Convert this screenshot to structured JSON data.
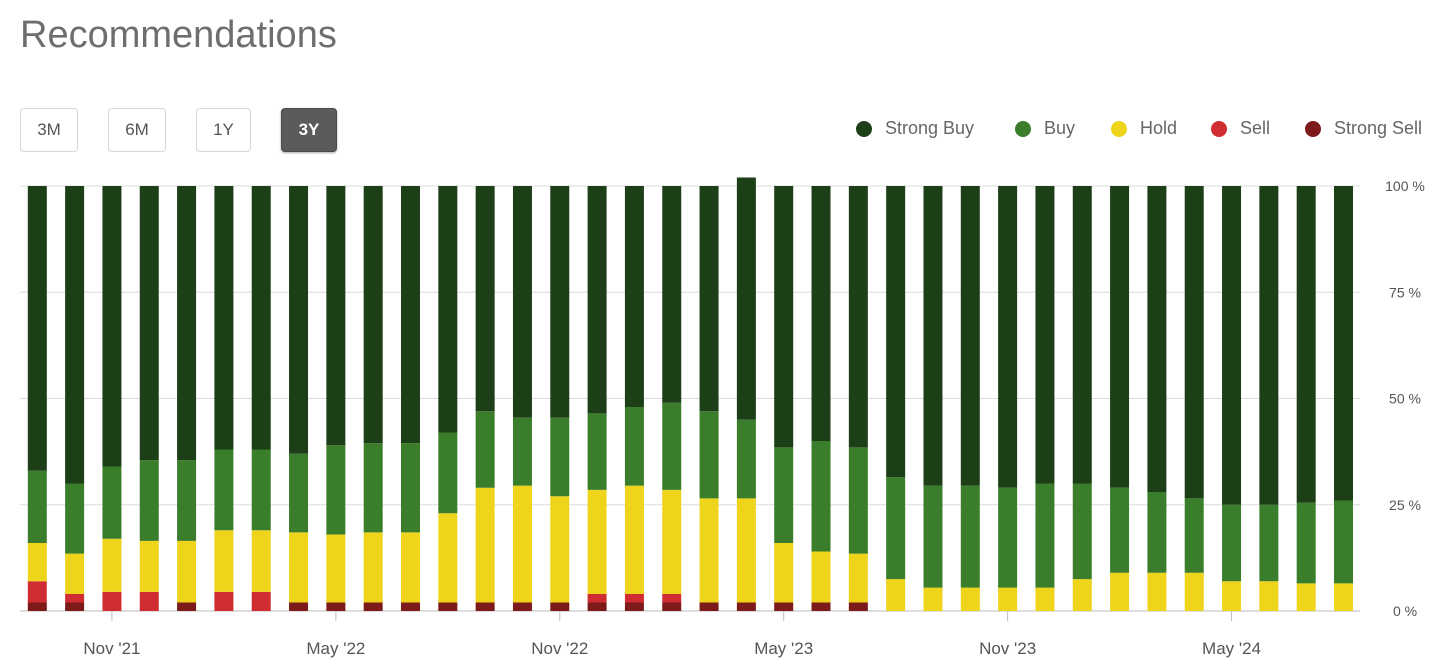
{
  "page": {
    "title": "Recommendations"
  },
  "range_buttons": [
    {
      "label": "3M",
      "active": false
    },
    {
      "label": "6M",
      "active": false
    },
    {
      "label": "1Y",
      "active": false
    },
    {
      "label": "3Y",
      "active": true
    }
  ],
  "legend": [
    {
      "label": "Strong Buy",
      "color": "#1d3f17"
    },
    {
      "label": "Buy",
      "color": "#3a7e2b"
    },
    {
      "label": "Hold",
      "color": "#eed41b"
    },
    {
      "label": "Sell",
      "color": "#cf2d31"
    },
    {
      "label": "Strong Sell",
      "color": "#7d1a1a"
    }
  ],
  "chart_data": {
    "type": "bar",
    "stacked": true,
    "normalized": true,
    "title": "",
    "xlabel": "",
    "ylabel": "",
    "ylim": [
      0,
      100
    ],
    "y_ticks": [
      "0 %",
      "25 %",
      "50 %",
      "75 %",
      "100 %"
    ],
    "y_tick_values": [
      0,
      25,
      50,
      75,
      100
    ],
    "x_tick_labels": [
      {
        "label": "Nov '21",
        "bar_index": 2
      },
      {
        "label": "May '22",
        "bar_index": 8
      },
      {
        "label": "Nov '22",
        "bar_index": 14
      },
      {
        "label": "May '23",
        "bar_index": 20
      },
      {
        "label": "Nov '23",
        "bar_index": 26
      },
      {
        "label": "May '24",
        "bar_index": 32
      }
    ],
    "grid": true,
    "legend_position": "top-right",
    "series_order": [
      "Strong Sell",
      "Sell",
      "Hold",
      "Buy",
      "Strong Buy"
    ],
    "series": [
      {
        "name": "Strong Sell",
        "color": "#7d1a1a",
        "values": [
          2,
          2,
          0,
          0,
          2,
          0,
          0,
          2,
          2,
          2,
          2,
          2,
          2,
          2,
          2,
          2,
          2,
          2,
          2,
          2,
          2,
          2,
          2,
          0,
          0,
          0,
          0,
          0,
          0,
          0,
          0,
          0,
          0,
          0,
          0,
          0
        ]
      },
      {
        "name": "Sell",
        "color": "#cf2d31",
        "values": [
          5,
          2,
          4.5,
          4.5,
          0,
          4.5,
          4.5,
          0,
          0,
          0,
          0,
          0,
          0,
          0,
          0,
          2,
          2,
          2,
          0,
          0,
          0,
          0,
          0,
          0,
          0,
          0,
          0,
          0,
          0,
          0,
          0,
          0,
          0,
          0,
          0,
          0
        ]
      },
      {
        "name": "Hold",
        "color": "#eed41b",
        "values": [
          9,
          9.5,
          12.5,
          12,
          14.5,
          14.5,
          14.5,
          16.5,
          16,
          16.5,
          16.5,
          21,
          27,
          27.5,
          25,
          24.5,
          25.5,
          24.5,
          24.5,
          24.5,
          14,
          12,
          11.5,
          7.5,
          5.5,
          5.5,
          5.5,
          5.5,
          7.5,
          9,
          9,
          9,
          7,
          7,
          6.5,
          6.5
        ]
      },
      {
        "name": "Buy",
        "color": "#3a7e2b",
        "values": [
          17,
          16.5,
          17,
          19,
          19,
          19,
          19,
          18.5,
          21,
          21,
          21,
          19,
          18,
          16,
          18.5,
          18,
          18.5,
          20.5,
          20.5,
          18.5,
          22.5,
          26,
          25,
          24,
          24,
          24,
          23.5,
          24.5,
          22.5,
          20,
          19,
          17.5,
          18,
          18,
          19,
          19.5
        ]
      },
      {
        "name": "Strong Buy",
        "color": "#1d3f17",
        "values": [
          67,
          70,
          66,
          64.5,
          64.5,
          62,
          62,
          63,
          61,
          60.5,
          60.5,
          58,
          53,
          54.5,
          54.5,
          53.5,
          52,
          51,
          53,
          57,
          61.5,
          60,
          61.5,
          68.5,
          70.5,
          70.5,
          71,
          70,
          70,
          71,
          72,
          73.5,
          75,
          75,
          74.5,
          74
        ]
      }
    ]
  }
}
